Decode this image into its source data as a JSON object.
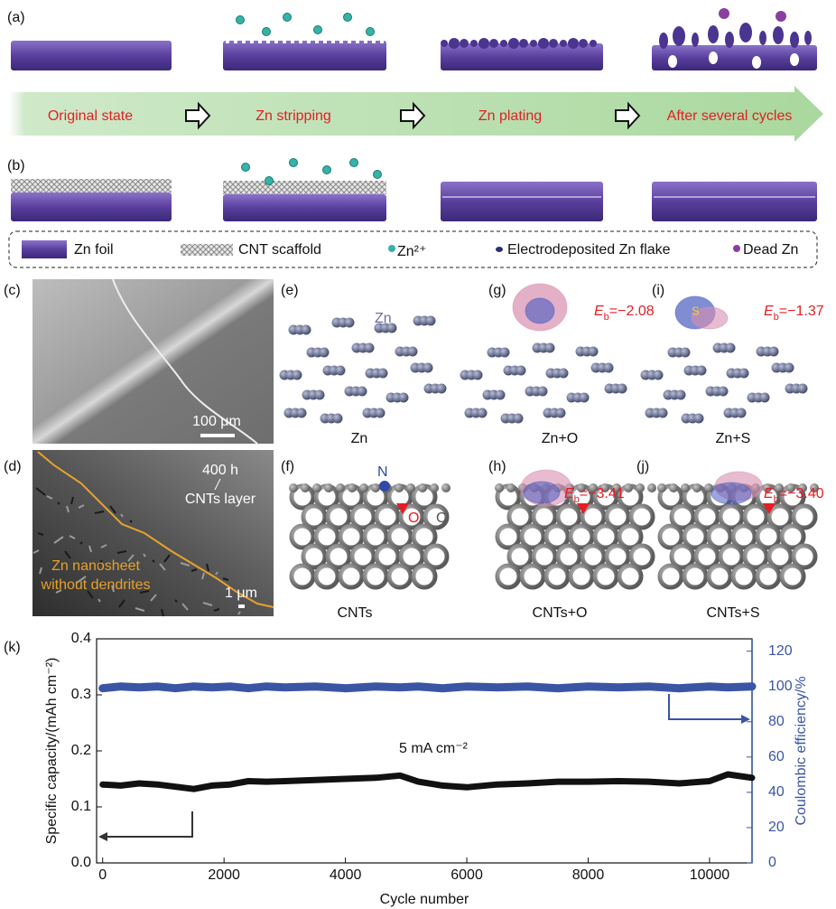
{
  "panels": {
    "a": "(a)",
    "b": "(b)",
    "c": "(c)",
    "d": "(d)",
    "e": "(e)",
    "f": "(f)",
    "g": "(g)",
    "h": "(h)",
    "i": "(i)",
    "j": "(j)"
  },
  "steps": [
    "Original state",
    "Zn stripping",
    "Zn plating",
    "After several cycles"
  ],
  "legend": [
    "Zn foil",
    "CNT scaffold",
    "Zn²⁺",
    "Electrodeposited Zn flake",
    "Dead Zn"
  ],
  "sem": {
    "c_scale": "100 μm",
    "d_time": "400 h",
    "d_layer": "CNTs layer",
    "d_zn": [
      "Zn nanosheet",
      "without dendrites"
    ],
    "d_scale": "1 μm"
  },
  "dft": {
    "atoms": {
      "zn": "Zn",
      "n": "N",
      "o": "O",
      "c": "C",
      "s": "S"
    },
    "captions": {
      "e": "Zn",
      "g": "Zn+O",
      "i": "Zn+S",
      "f": "CNTs",
      "h": "CNTs+O",
      "j": "CNTs+S"
    },
    "binding": {
      "g": {
        "var": "E",
        "sub": "b",
        "value": "=−2.08"
      },
      "i": {
        "var": "E",
        "sub": "b",
        "value": "=−1.37"
      },
      "h": {
        "var": "E",
        "sub": "b",
        "value": "=−3.41"
      },
      "j": {
        "var": "E",
        "sub": "b",
        "value": "=−3.40"
      }
    }
  },
  "chart_data": {
    "type": "line",
    "panel": "(k)",
    "xlabel": "Cycle number",
    "ylabel": "Specific capacity/(mAh cm⁻²)",
    "y2label": "Coulombic efficiency/%",
    "annotation": "5 mA cm⁻²",
    "x": [
      0,
      300,
      600,
      900,
      1200,
      1500,
      1800,
      2100,
      2400,
      2700,
      3000,
      3500,
      4000,
      4500,
      4900,
      5200,
      5600,
      6000,
      6500,
      7000,
      7500,
      8000,
      8500,
      9000,
      9500,
      10000,
      10300,
      10700
    ],
    "series": [
      {
        "color": "#111111",
        "values": [
          0.14,
          0.138,
          0.142,
          0.14,
          0.136,
          0.132,
          0.138,
          0.14,
          0.146,
          0.145,
          0.146,
          0.148,
          0.15,
          0.152,
          0.156,
          0.145,
          0.138,
          0.135,
          0.14,
          0.142,
          0.145,
          0.145,
          0.146,
          0.145,
          0.142,
          0.146,
          0.158,
          0.152
        ]
      },
      {
        "color": "#3a55a4",
        "axis": "y2",
        "values": [
          99,
          100,
          99.5,
          100,
          99,
          100,
          99.5,
          100,
          99,
          100,
          99.5,
          100,
          99,
          100,
          99.5,
          100,
          99,
          100,
          99.5,
          100,
          99,
          100,
          99.5,
          100,
          99,
          100,
          99.5,
          100
        ]
      }
    ],
    "xlim": [
      -100,
      10700
    ],
    "xticks": [
      0,
      2000,
      4000,
      6000,
      8000,
      10000
    ],
    "ylim": [
      0,
      0.4
    ],
    "yticks": [
      {
        "value": 0,
        "label": "0.0"
      },
      0.1,
      0.2,
      0.3,
      0.4
    ],
    "y2lim": [
      0,
      127
    ],
    "y2ticks": [
      0,
      20,
      40,
      60,
      80,
      100,
      120
    ]
  }
}
